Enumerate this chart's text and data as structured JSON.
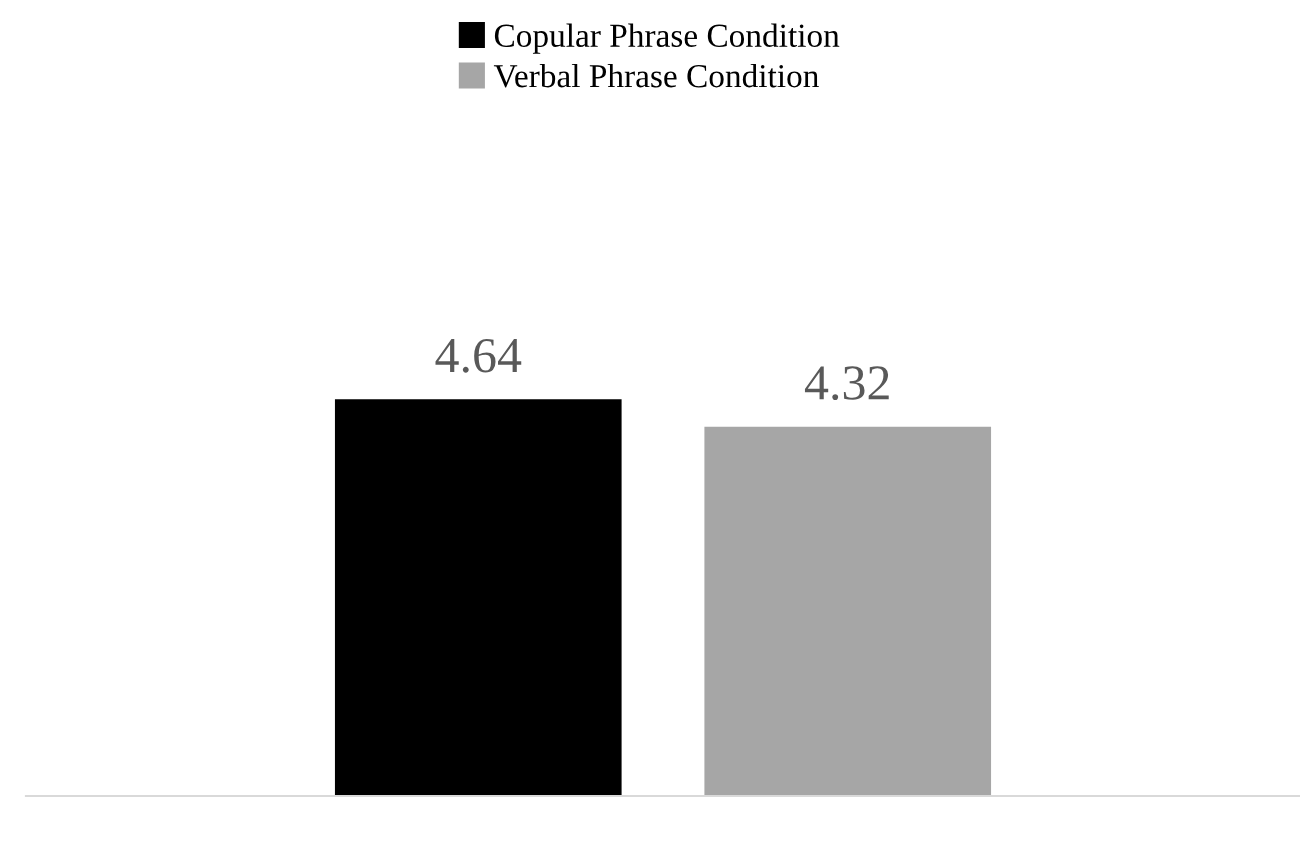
{
  "chart_data": {
    "type": "bar",
    "categories": [
      null
    ],
    "series": [
      {
        "name": "Copular Phrase Condition",
        "color": "#000000",
        "values": [
          4.64
        ]
      },
      {
        "name": "Verbal Phrase Condition",
        "color": "#a6a6a6",
        "values": [
          4.32
        ]
      }
    ],
    "data_labels": true,
    "legend": "top",
    "grid": false
  }
}
